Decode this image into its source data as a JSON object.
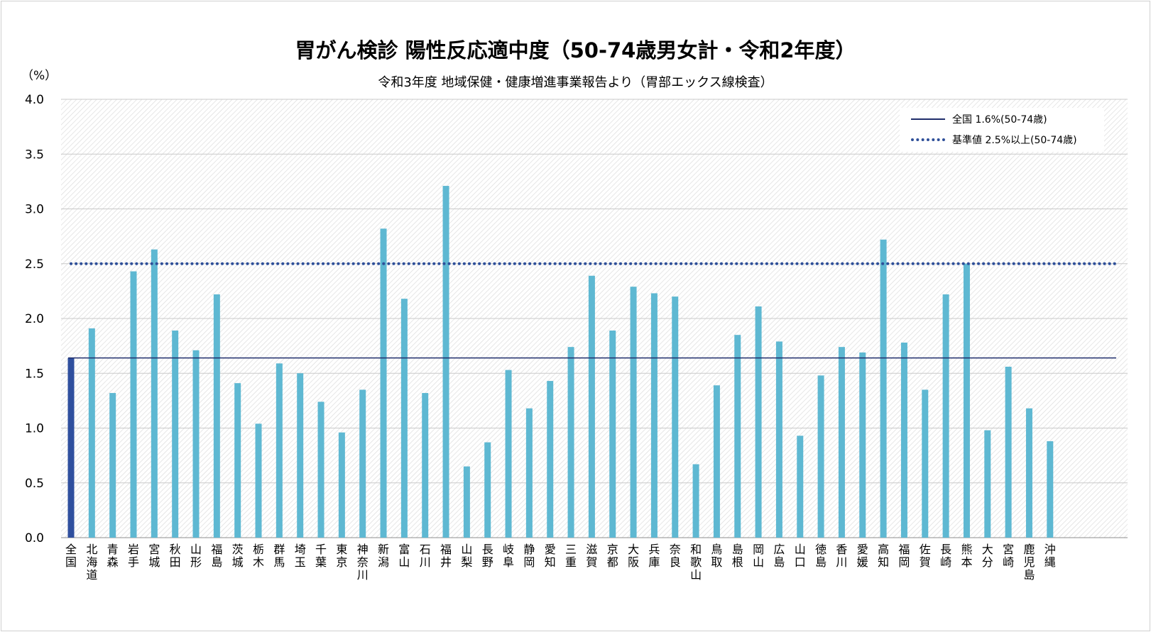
{
  "chart_data": {
    "type": "bar",
    "title": "胃がん検診 陽性反応適中度（50-74歳男女計・令和2年度）",
    "subtitle": "令和3年度 地域保健・健康増進事業報告より（胃部エックス線検査）",
    "ylabel": "（%）",
    "ylim": [
      0,
      4.0
    ],
    "yticks": [
      "0.0",
      "0.5",
      "1.0",
      "1.5",
      "2.0",
      "2.5",
      "3.0",
      "3.5",
      "4.0"
    ],
    "categories": [
      "全国",
      "北海道",
      "青森",
      "岩手",
      "宮城",
      "秋田",
      "山形",
      "福島",
      "茨城",
      "栃木",
      "群馬",
      "埼玉",
      "千葉",
      "東京",
      "神奈川",
      "新潟",
      "富山",
      "石川",
      "福井",
      "山梨",
      "長野",
      "岐阜",
      "静岡",
      "愛知",
      "三重",
      "滋賀",
      "京都",
      "大阪",
      "兵庫",
      "奈良",
      "和歌山",
      "鳥取",
      "島根",
      "岡山",
      "広島",
      "山口",
      "徳島",
      "香川",
      "愛媛",
      "高知",
      "福岡",
      "佐賀",
      "長崎",
      "熊本",
      "大分",
      "宮崎",
      "鹿児島",
      "沖縄"
    ],
    "values": [
      1.64,
      1.91,
      1.32,
      2.43,
      2.63,
      1.89,
      1.71,
      2.22,
      1.41,
      1.04,
      1.59,
      1.5,
      1.24,
      0.96,
      1.35,
      2.82,
      2.18,
      1.32,
      3.21,
      0.65,
      0.87,
      1.53,
      1.18,
      1.43,
      1.74,
      2.39,
      1.89,
      2.29,
      2.23,
      2.2,
      0.67,
      1.39,
      1.85,
      2.11,
      1.79,
      0.93,
      1.48,
      1.74,
      1.69,
      2.72,
      1.78,
      1.35,
      2.22,
      2.5,
      0.98,
      1.56,
      1.18,
      0.88
    ],
    "highlight_color": "#2f4f9e",
    "bar_color": "#5eb8d2",
    "reference_lines": [
      {
        "name": "全国 1.6%(50-74歳)",
        "value": 1.64,
        "style": "solid",
        "color": "#1f2d6b"
      },
      {
        "name": "基準値 2.5%以上(50-74歳)",
        "value": 2.5,
        "style": "dotted",
        "color": "#2e4f99"
      }
    ],
    "grid": true,
    "legend_position": "top-right"
  }
}
